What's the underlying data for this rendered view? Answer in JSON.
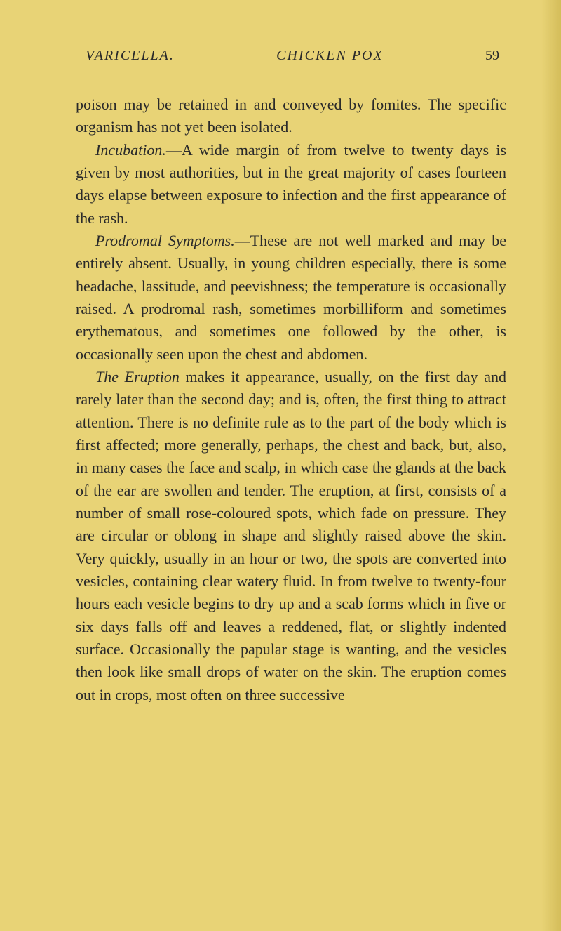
{
  "page": {
    "background_color": "#e8d376",
    "text_color": "#2a2a2a",
    "font_family": "Georgia, serif",
    "body_fontsize": 22,
    "header_fontsize": 20,
    "line_height": 1.47
  },
  "header": {
    "title_part1": "VARICELLA.",
    "title_part2": "CHICKEN POX",
    "page_number": "59"
  },
  "paragraphs": {
    "p1": "poison may be retained in and conveyed by fomites. The specific organism has not yet been isolated.",
    "p2_italic": "Incubation.",
    "p2_text": "—A wide margin of from twelve to twenty days is given by most authorities, but in the great majority of cases fourteen days elapse between exposure to infection and the first appearance of the rash.",
    "p3_italic": "Prodromal Symptoms.",
    "p3_text": "—These are not well marked and may be entirely absent. Usually, in young children especially, there is some headache, lassitude, and peevishness; the temperature is occasionally raised. A prodromal rash, sometimes morbilliform and sometimes erythematous, and sometimes one followed by the other, is occasionally seen upon the chest and abdomen.",
    "p4_italic": "The Eruption",
    "p4_text": " makes it appearance, usually, on the first day and rarely later than the second day; and is, often, the first thing to attract attention. There is no definite rule as to the part of the body which is first affected; more generally, perhaps, the chest and back, but, also, in many cases the face and scalp, in which case the glands at the back of the ear are swollen and tender. The eruption, at first, consists of a number of small rose-coloured spots, which fade on pressure. They are circular or oblong in shape and slightly raised above the skin. Very quickly, usually in an hour or two, the spots are converted into vesicles, containing clear watery fluid. In from twelve to twenty-four hours each vesicle begins to dry up and a scab forms which in five or six days falls off and leaves a reddened, flat, or slightly indented surface. Occasionally the papular stage is wanting, and the vesicles then look like small drops of water on the skin. The eruption comes out in crops, most often on three successive"
  }
}
